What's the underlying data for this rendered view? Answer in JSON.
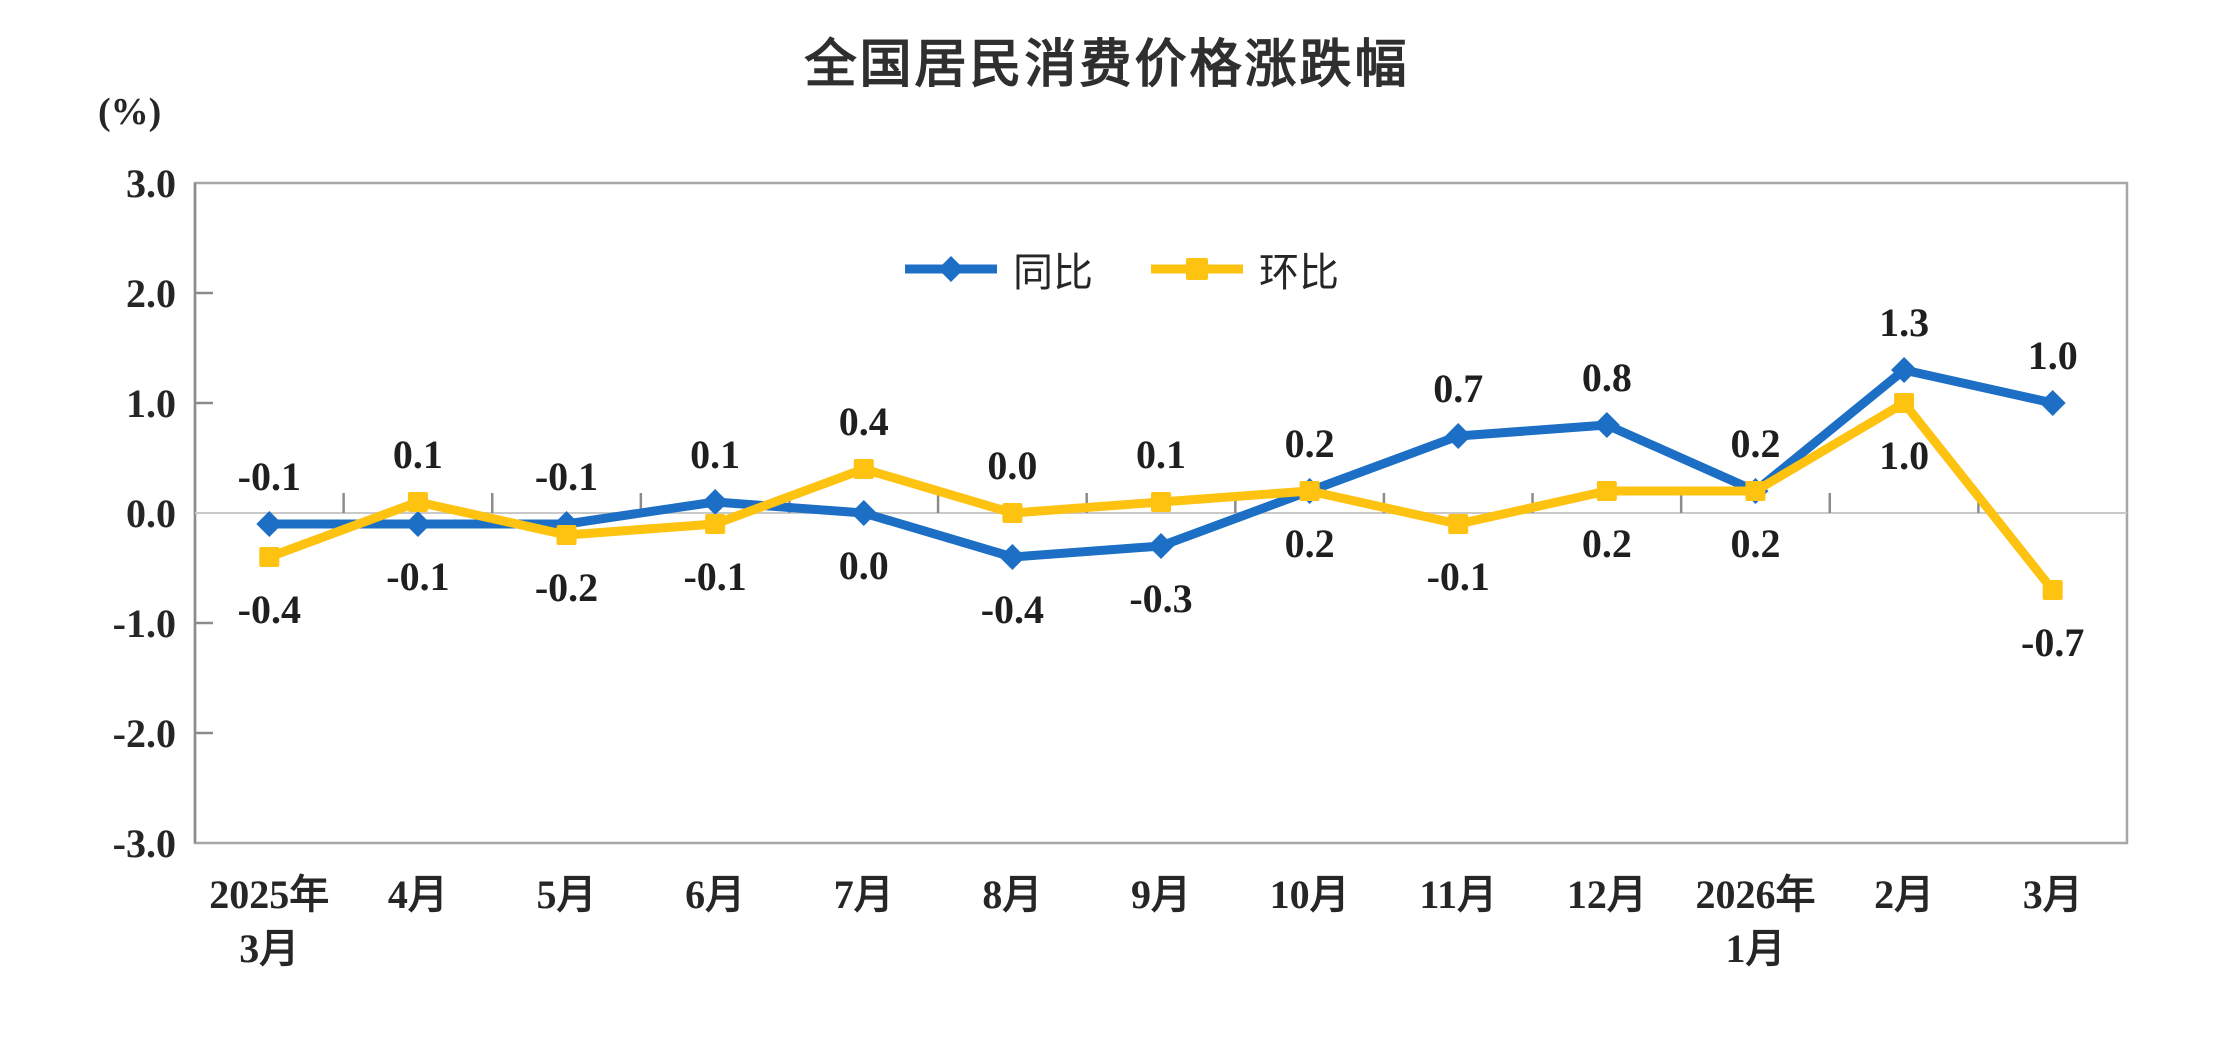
{
  "title": "全国居民消费价格涨跌幅",
  "y_axis_unit": "(%)",
  "legend": {
    "position": "inside-top-center",
    "items": [
      {
        "id": "yoy",
        "label": "同比",
        "marker": "diamond"
      },
      {
        "id": "mom",
        "label": "环比",
        "marker": "square"
      }
    ]
  },
  "colors": {
    "yoy": "#1c6fc4",
    "mom": "#fec211",
    "title_text": "#2f2f2f",
    "axis_text": "#262626",
    "data_label_text": "#1f1f1f",
    "plot_border": "#a7a7a7",
    "y_axis_line": "#8c8c8c",
    "zero_line": "#c9c9c9",
    "tick": "#8c8c8c",
    "background": "#ffffff"
  },
  "chart_data": {
    "type": "line",
    "title": "全国居民消费价格涨跌幅",
    "xlabel": "",
    "ylabel": "(%)",
    "ylim": [
      -3.0,
      3.0
    ],
    "ytick_step": 1.0,
    "y_tick_labels": [
      "3.0",
      "2.0",
      "1.0",
      "0.0",
      "-1.0",
      "-2.0",
      "-3.0"
    ],
    "grid": false,
    "legend_position": "inside-top-center",
    "categories": [
      [
        "2025年",
        "3月"
      ],
      [
        "4月"
      ],
      [
        "5月"
      ],
      [
        "6月"
      ],
      [
        "7月"
      ],
      [
        "8月"
      ],
      [
        "9月"
      ],
      [
        "10月"
      ],
      [
        "11月"
      ],
      [
        "12月"
      ],
      [
        "2026年",
        "1月"
      ],
      [
        "2月"
      ],
      [
        "3月"
      ]
    ],
    "series": [
      {
        "id": "yoy",
        "name": "同比",
        "marker": "diamond",
        "color": "#1c6fc4",
        "values": [
          -0.1,
          -0.1,
          -0.1,
          0.1,
          0.0,
          -0.4,
          -0.3,
          0.2,
          0.7,
          0.8,
          0.2,
          1.3,
          1.0
        ]
      },
      {
        "id": "mom",
        "name": "环比",
        "marker": "square",
        "color": "#fec211",
        "values": [
          -0.4,
          0.1,
          -0.2,
          -0.1,
          0.4,
          0.0,
          0.1,
          0.2,
          -0.1,
          0.2,
          0.2,
          1.0,
          -0.7
        ]
      }
    ]
  }
}
